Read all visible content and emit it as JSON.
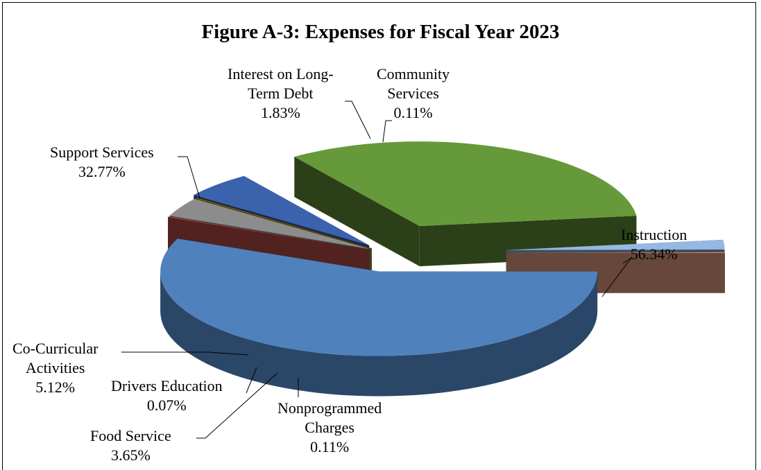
{
  "chart_data": {
    "type": "pie",
    "title": "Figure A-3: Expenses for Fiscal Year 2023",
    "slices": [
      {
        "label_lines": [
          "Instruction"
        ],
        "value": 56.34,
        "value_label": "56.34%",
        "color": "#4f81bd"
      },
      {
        "label_lines": [
          "Nonprogrammed",
          "Charges"
        ],
        "value": 0.11,
        "value_label": "0.11%",
        "color": "#c0504d"
      },
      {
        "label_lines": [
          "Food Service"
        ],
        "value": 3.65,
        "value_label": "3.65%",
        "color": "#8c8c8c"
      },
      {
        "label_lines": [
          "Drivers Education"
        ],
        "value": 0.07,
        "value_label": "0.07%",
        "color": "#c09100"
      },
      {
        "label_lines": [
          "Co-Curricular",
          "Activities"
        ],
        "value": 5.12,
        "value_label": "5.12%",
        "color": "#3a62ad"
      },
      {
        "label_lines": [
          "Support Services"
        ],
        "value": 32.77,
        "value_label": "32.77%",
        "color": "#66993a"
      },
      {
        "label_lines": [
          "Interest on Long-",
          "Term Debt"
        ],
        "value": 1.83,
        "value_label": "1.83%",
        "color": "#96b8e2"
      },
      {
        "label_lines": [
          "Community",
          "Services"
        ],
        "value": 0.11,
        "value_label": "0.11%",
        "color": "#f2a88a"
      }
    ],
    "legend": "none",
    "style": "3d-exploded"
  }
}
